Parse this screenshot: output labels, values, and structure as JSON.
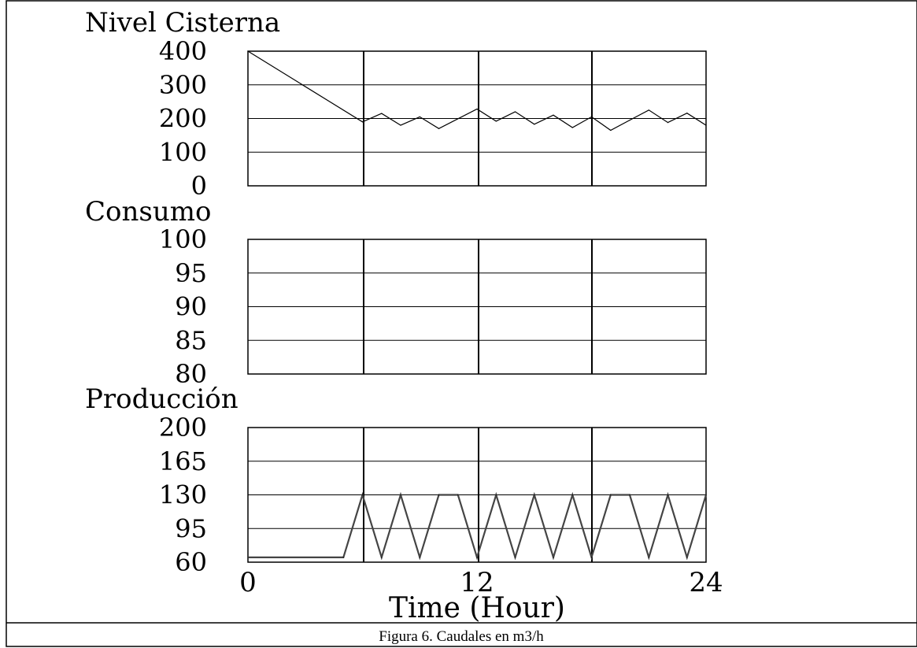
{
  "caption": "Figura 6. Caudales en m3/h",
  "xlabel": "Time (Hour)",
  "x_ticks": [
    "0",
    "12",
    "24"
  ],
  "chart_data": [
    {
      "type": "line",
      "title": "Nivel Cisterna",
      "xlim": [
        0,
        24
      ],
      "ylim": [
        0,
        400
      ],
      "yticks": [
        "400",
        "300",
        "200",
        "100",
        "0"
      ],
      "grid": true,
      "series": [
        {
          "x": [
            0,
            6,
            7,
            8,
            9,
            10,
            12,
            13,
            14,
            15,
            16,
            17,
            18,
            19,
            20,
            21,
            22,
            23,
            24
          ],
          "y": [
            400,
            190,
            215,
            180,
            205,
            170,
            228,
            192,
            220,
            183,
            210,
            173,
            205,
            165,
            195,
            225,
            188,
            216,
            180
          ]
        }
      ]
    },
    {
      "type": "line",
      "title": "Consumo",
      "xlim": [
        0,
        24
      ],
      "ylim": [
        80,
        100
      ],
      "yticks": [
        "100",
        "95",
        "90",
        "85",
        "80"
      ],
      "grid": true,
      "series": []
    },
    {
      "type": "line",
      "title": "Producción",
      "xlim": [
        0,
        24
      ],
      "ylim": [
        60,
        200
      ],
      "yticks": [
        "200",
        "165",
        "130",
        "95",
        "60"
      ],
      "grid": true,
      "series": [
        {
          "x": [
            0,
            5,
            6,
            7,
            8,
            9,
            10,
            11,
            12,
            13,
            14,
            15,
            16,
            17,
            18,
            19,
            20,
            21,
            22,
            23,
            24
          ],
          "y": [
            65,
            65,
            130,
            65,
            130,
            65,
            130,
            130,
            65,
            130,
            65,
            130,
            65,
            130,
            65,
            130,
            130,
            65,
            130,
            65,
            130
          ]
        }
      ]
    }
  ]
}
